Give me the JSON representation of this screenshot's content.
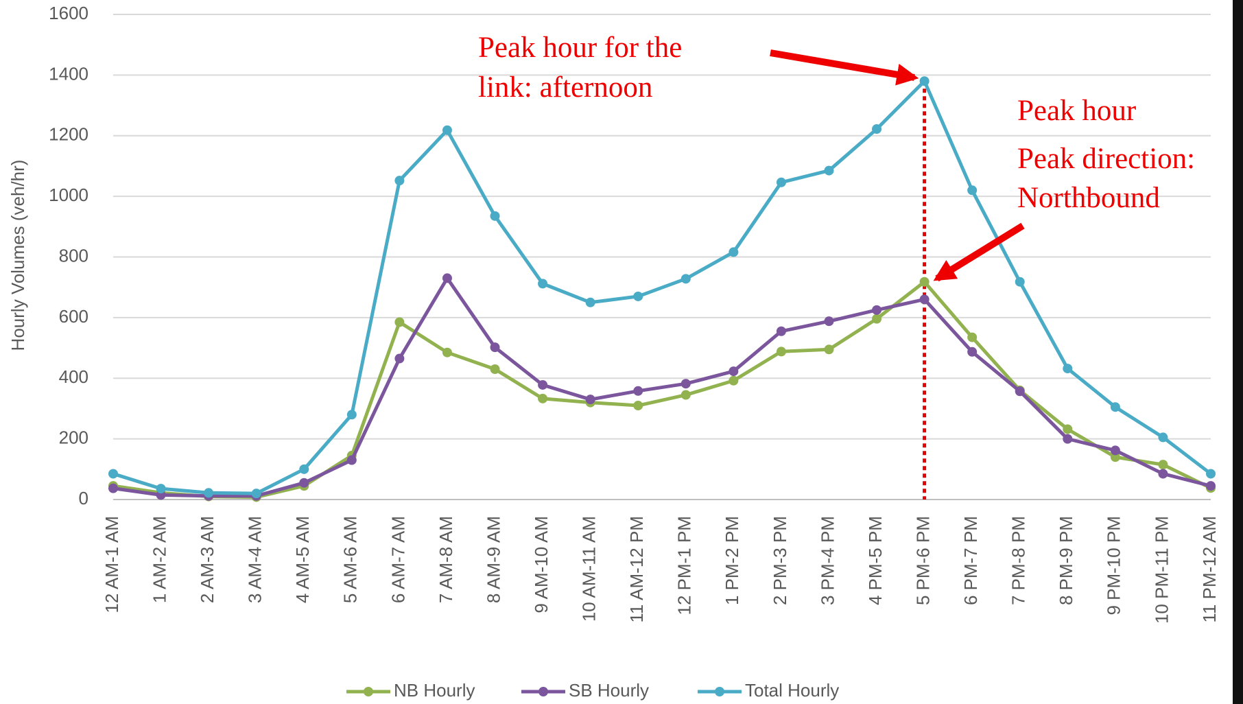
{
  "chart_data": {
    "type": "line",
    "y_label": "Hourly Volumes (veh/hr)",
    "categories": [
      "12 AM-1 AM",
      "1 AM-2 AM",
      "2 AM-3 AM",
      "3 AM-4 AM",
      "4 AM-5 AM",
      "5 AM-6 AM",
      "6 AM-7 AM",
      "7 AM-8 AM",
      "8 AM-9 AM",
      "9 AM-10 AM",
      "10 AM-11 AM",
      "11 AM-12 PM",
      "12 PM-1 PM",
      "1 PM-2 PM",
      "2 PM-3 PM",
      "3 PM-4 PM",
      "4 PM-5 PM",
      "5 PM-6 PM",
      "6 PM-7 PM",
      "7 PM-8 PM",
      "8 PM-9 PM",
      "9 PM-10 PM",
      "10 PM-11 PM",
      "11 PM-12 AM"
    ],
    "series": [
      {
        "name": "NB Hourly",
        "color": "#92b24f",
        "values": [
          45,
          22,
          10,
          8,
          45,
          145,
          585,
          485,
          430,
          333,
          320,
          310,
          345,
          392,
          488,
          495,
          596,
          718,
          535,
          360,
          232,
          140,
          115,
          38
        ]
      },
      {
        "name": "SB Hourly",
        "color": "#7b569d",
        "values": [
          37,
          15,
          12,
          12,
          55,
          130,
          465,
          730,
          502,
          378,
          330,
          358,
          382,
          423,
          555,
          588,
          625,
          660,
          487,
          357,
          200,
          162,
          85,
          45
        ]
      },
      {
        "name": "Total Hourly",
        "color": "#4aabc6",
        "values": [
          85,
          36,
          22,
          20,
          100,
          280,
          1052,
          1218,
          935,
          712,
          650,
          670,
          728,
          816,
          1046,
          1085,
          1222,
          1380,
          1020,
          718,
          432,
          305,
          205,
          85
        ]
      }
    ],
    "ylim": [
      0,
      1600
    ],
    "yticks": [
      0,
      200,
      400,
      600,
      800,
      1000,
      1200,
      1400,
      1600
    ],
    "grid": true,
    "legend": "bottom",
    "annotations": [
      {
        "lines": [
          "Peak hour for the",
          "link: afternoon"
        ]
      },
      {
        "lines": [
          "Peak hour",
          "Peak direction:",
          "Northbound"
        ]
      }
    ]
  }
}
